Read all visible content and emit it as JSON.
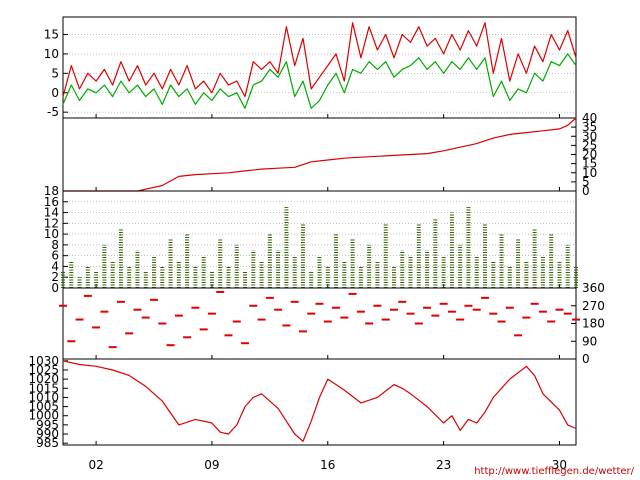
{
  "credit": "http://www.tiefflegen.de/wetter/",
  "x_axis": {
    "range": [
      0,
      31
    ],
    "tick_labels": [
      "02",
      "09",
      "16",
      "23",
      "30"
    ],
    "tick_days": [
      2,
      9,
      16,
      23,
      30
    ]
  },
  "colors": {
    "red": "#dd0000",
    "green": "#00aa00",
    "dark_green": "#336600",
    "frame": "#000000",
    "grid": "#999999"
  },
  "chart_data": [
    {
      "type": "line",
      "panel": "temperature",
      "yticks": [
        -5,
        0,
        5,
        10,
        15
      ],
      "ylim": [
        -6.5,
        19.5
      ],
      "grid": true,
      "series": [
        {
          "color": "#dd0000",
          "x": [
            0,
            0.5,
            1,
            1.5,
            2,
            2.5,
            3,
            3.5,
            4,
            4.5,
            5,
            5.5,
            6,
            6.5,
            7,
            7.5,
            8,
            8.5,
            9,
            9.5,
            10,
            10.5,
            11,
            11.5,
            12,
            12.5,
            13,
            13.5,
            14,
            14.5,
            15,
            15.5,
            16,
            16.5,
            17,
            17.5,
            18,
            18.5,
            19,
            19.5,
            20,
            20.5,
            21,
            21.5,
            22,
            22.5,
            23,
            23.5,
            24,
            24.5,
            25,
            25.5,
            26,
            26.5,
            27,
            27.5,
            28,
            28.5,
            29,
            29.5,
            30,
            30.5,
            31
          ],
          "values": [
            -1,
            7,
            1,
            5,
            3,
            6,
            2,
            8,
            3,
            7,
            2,
            5,
            1,
            6,
            2,
            7,
            1,
            3,
            0,
            5,
            2,
            3,
            -1,
            8,
            6,
            8,
            5,
            17,
            7,
            14,
            1,
            4,
            7,
            10,
            3,
            18,
            9,
            17,
            11,
            15,
            9,
            15,
            13,
            17,
            12,
            14,
            10,
            15,
            11,
            16,
            12,
            18,
            5,
            14,
            3,
            10,
            5,
            12,
            8,
            15,
            11,
            16,
            9
          ]
        },
        {
          "color": "#00aa00",
          "x": [
            0,
            0.5,
            1,
            1.5,
            2,
            2.5,
            3,
            3.5,
            4,
            4.5,
            5,
            5.5,
            6,
            6.5,
            7,
            7.5,
            8,
            8.5,
            9,
            9.5,
            10,
            10.5,
            11,
            11.5,
            12,
            12.5,
            13,
            13.5,
            14,
            14.5,
            15,
            15.5,
            16,
            16.5,
            17,
            17.5,
            18,
            18.5,
            19,
            19.5,
            20,
            20.5,
            21,
            21.5,
            22,
            22.5,
            23,
            23.5,
            24,
            24.5,
            25,
            25.5,
            26,
            26.5,
            27,
            27.5,
            28,
            28.5,
            29,
            29.5,
            30,
            30.5,
            31
          ],
          "values": [
            -3,
            2,
            -2,
            1,
            0,
            2,
            -1,
            3,
            0,
            2,
            -1,
            1,
            -3,
            2,
            -1,
            1,
            -3,
            0,
            -2,
            1,
            -1,
            0,
            -4,
            2,
            3,
            6,
            4,
            8,
            -1,
            3,
            -4,
            -2,
            2,
            5,
            0,
            6,
            5,
            8,
            6,
            8,
            4,
            6,
            7,
            9,
            6,
            8,
            5,
            8,
            6,
            9,
            6,
            9,
            -1,
            3,
            -2,
            1,
            0,
            5,
            3,
            8,
            7,
            10,
            7
          ]
        }
      ]
    },
    {
      "type": "line",
      "panel": "precipitation-cumulative",
      "yticks": [
        0,
        5,
        10,
        15,
        20,
        25,
        30,
        35,
        40
      ],
      "ylim": [
        0,
        40
      ],
      "color": "#dd0000",
      "x": [
        0,
        4.5,
        5,
        6,
        7,
        8,
        10,
        11,
        12,
        13,
        14,
        15,
        16,
        17,
        18,
        19,
        20,
        21,
        22,
        23,
        24,
        25,
        26,
        27,
        28,
        29,
        30,
        30.5,
        31
      ],
      "values": [
        0,
        0,
        1,
        3,
        8,
        9,
        10,
        11,
        12,
        12.5,
        13,
        16,
        17,
        18,
        18.5,
        19,
        19.5,
        20,
        20.5,
        22,
        24,
        26,
        29,
        31,
        32,
        33,
        34,
        36,
        40
      ]
    },
    {
      "type": "bar",
      "panel": "wind-speed",
      "yticks": [
        0,
        2,
        4,
        6,
        8,
        10,
        12,
        14,
        16,
        18
      ],
      "ylim": [
        0,
        18
      ],
      "grid": true,
      "color": "#336600",
      "x": [
        0,
        0.5,
        1,
        1.5,
        2,
        2.5,
        3,
        3.5,
        4,
        4.5,
        5,
        5.5,
        6,
        6.5,
        7,
        7.5,
        8,
        8.5,
        9,
        9.5,
        10,
        10.5,
        11,
        11.5,
        12,
        12.5,
        13,
        13.5,
        14,
        14.5,
        15,
        15.5,
        16,
        16.5,
        17,
        17.5,
        18,
        18.5,
        19,
        19.5,
        20,
        20.5,
        21,
        21.5,
        22,
        22.5,
        23,
        23.5,
        24,
        24.5,
        25,
        25.5,
        26,
        26.5,
        27,
        27.5,
        28,
        28.5,
        29,
        29.5,
        30,
        30.5,
        31
      ],
      "values": [
        3,
        5,
        2,
        4,
        3,
        8,
        5,
        11,
        4,
        7,
        3,
        6,
        4,
        9,
        5,
        10,
        4,
        6,
        3,
        9,
        4,
        8,
        3,
        7,
        5,
        10,
        7,
        15,
        6,
        12,
        3,
        6,
        4,
        10,
        5,
        9,
        4,
        8,
        5,
        12,
        4,
        7,
        6,
        12,
        7,
        13,
        6,
        14,
        8,
        15,
        6,
        12,
        5,
        10,
        4,
        9,
        5,
        11,
        6,
        10,
        5,
        8,
        4
      ]
    },
    {
      "type": "scatter",
      "panel": "wind-direction",
      "yticks": [
        0,
        90,
        180,
        270,
        360
      ],
      "ylim": [
        0,
        360
      ],
      "color": "#dd0000",
      "x": [
        0,
        0.5,
        1,
        1.5,
        2,
        2.5,
        3,
        3.5,
        4,
        4.5,
        5,
        5.5,
        6,
        6.5,
        7,
        7.5,
        8,
        8.5,
        9,
        9.5,
        10,
        10.5,
        11,
        11.5,
        12,
        12.5,
        13,
        13.5,
        14,
        14.5,
        15,
        15.5,
        16,
        16.5,
        17,
        17.5,
        18,
        18.5,
        19,
        19.5,
        20,
        20.5,
        21,
        21.5,
        22,
        22.5,
        23,
        23.5,
        24,
        24.5,
        25,
        25.5,
        26,
        26.5,
        27,
        27.5,
        28,
        28.5,
        29,
        29.5,
        30,
        30.5,
        31
      ],
      "values": [
        270,
        90,
        200,
        320,
        160,
        240,
        60,
        290,
        130,
        250,
        210,
        300,
        180,
        70,
        220,
        110,
        260,
        150,
        230,
        340,
        120,
        190,
        80,
        270,
        200,
        310,
        250,
        170,
        290,
        140,
        230,
        280,
        190,
        260,
        210,
        330,
        240,
        180,
        270,
        200,
        250,
        290,
        230,
        180,
        260,
        220,
        280,
        240,
        200,
        270,
        250,
        310,
        230,
        190,
        260,
        120,
        210,
        280,
        240,
        190,
        250,
        230,
        200
      ]
    },
    {
      "type": "line",
      "panel": "pressure",
      "yticks": [
        985,
        990,
        995,
        1000,
        1005,
        1010,
        1015,
        1020,
        1025,
        1030
      ],
      "ylim": [
        984,
        1031
      ],
      "color": "#dd0000",
      "x": [
        0,
        1,
        2,
        3,
        4,
        5,
        6,
        7,
        8,
        9,
        9.5,
        10,
        10.5,
        11,
        11.5,
        12,
        13,
        14,
        14.5,
        15,
        15.5,
        16,
        17,
        18,
        19,
        20,
        20.5,
        21,
        22,
        23,
        23.5,
        24,
        24.5,
        25,
        25.5,
        26,
        27,
        28,
        28.5,
        29,
        30,
        30.5,
        31
      ],
      "values": [
        1030,
        1028,
        1027,
        1025,
        1022,
        1016,
        1008,
        995,
        998,
        996,
        991,
        990,
        995,
        1005,
        1010,
        1012,
        1004,
        990,
        986,
        997,
        1010,
        1020,
        1014,
        1007,
        1010,
        1017,
        1015,
        1012,
        1005,
        996,
        1000,
        992,
        998,
        996,
        1002,
        1010,
        1020,
        1027,
        1022,
        1012,
        1003,
        995,
        993
      ]
    }
  ]
}
